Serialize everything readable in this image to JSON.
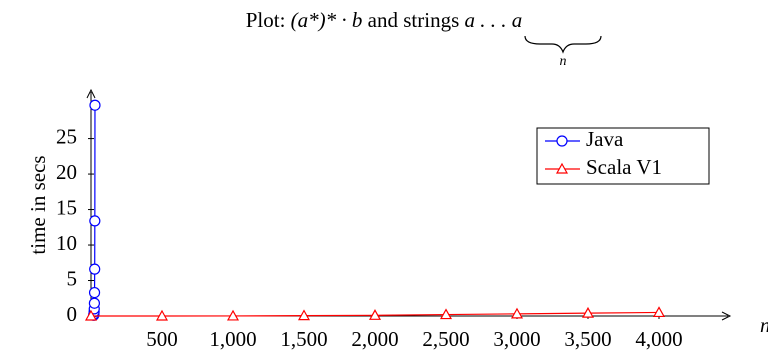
{
  "chart_data": {
    "type": "line",
    "title": {
      "prefix": "Plot: ",
      "regex": "(a*)* · b",
      "middle": " and strings ",
      "string": "a . . . a",
      "underbrace_label": "n"
    },
    "xlabel": "n",
    "ylabel": "time in secs",
    "xlim": [
      0,
      4500
    ],
    "ylim": [
      0,
      31
    ],
    "xticks": [
      500,
      {
        "value": 1000,
        "label": "1,000"
      },
      {
        "value": 1500,
        "label": "1,500"
      },
      {
        "value": 2000,
        "label": "2,000"
      },
      {
        "value": 2500,
        "label": "2,500"
      },
      {
        "value": 3000,
        "label": "3,000"
      },
      {
        "value": 3500,
        "label": "3,500"
      },
      {
        "value": 4000,
        "label": "4,000"
      }
    ],
    "yticks": [
      0,
      5,
      10,
      15,
      20,
      25
    ],
    "legend": "top-right",
    "series": [
      {
        "name": "Java",
        "color": "#0000ff",
        "marker": "circle",
        "x": [
          19,
          20,
          21,
          22,
          23,
          24,
          25,
          26,
          27,
          28
        ],
        "values": [
          0.1,
          0.2,
          0.3,
          0.6,
          1.0,
          1.8,
          3.3,
          6.6,
          13.4,
          29.7
        ]
      },
      {
        "name": "Scala V1",
        "color": "#ff0000",
        "marker": "triangle",
        "x": [
          0,
          500,
          1000,
          1500,
          2000,
          2500,
          3000,
          3500,
          4000
        ],
        "values": [
          0,
          0,
          0.01,
          0.05,
          0.1,
          0.2,
          0.3,
          0.4,
          0.5
        ]
      }
    ]
  }
}
